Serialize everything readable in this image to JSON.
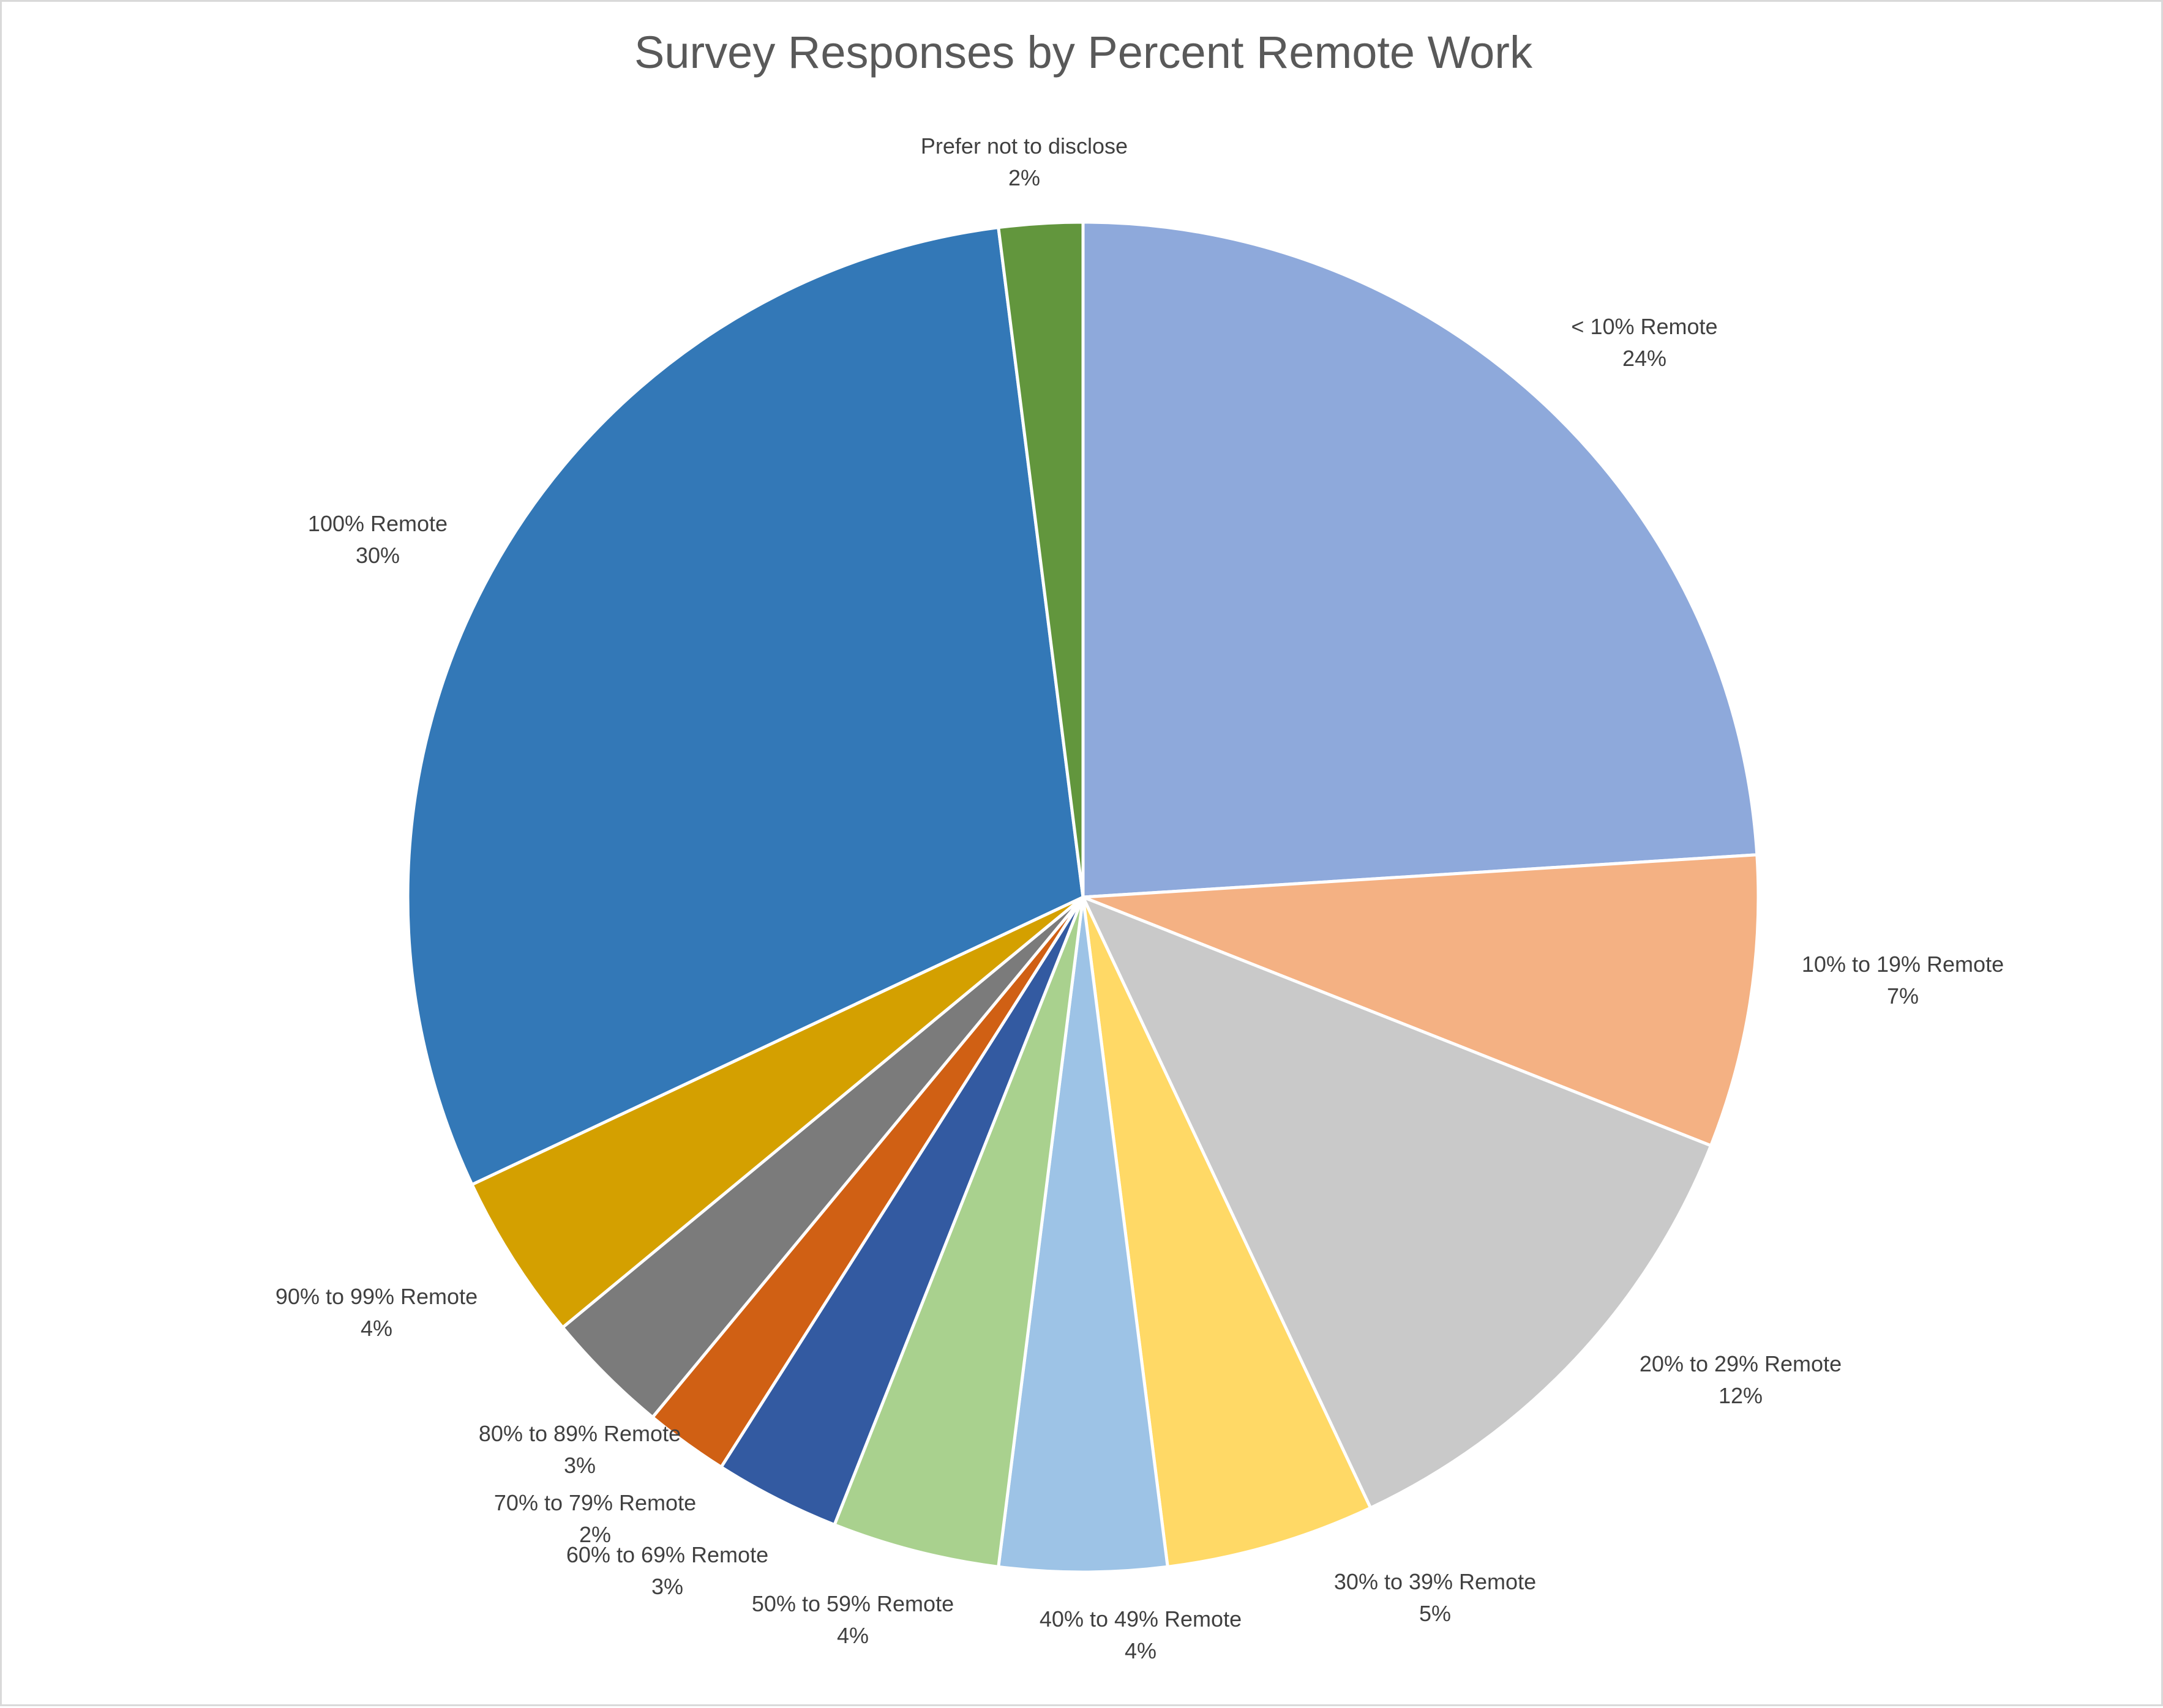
{
  "chart_data": {
    "type": "pie",
    "title": "Survey Responses by Percent Remote Work",
    "start_angle_deg": 0,
    "direction": "clockwise",
    "slices": [
      {
        "label": "< 10% Remote",
        "value": 24,
        "value_label": "24%",
        "color": "#8EA9DB"
      },
      {
        "label": "10% to 19% Remote",
        "value": 7,
        "value_label": "7%",
        "color": "#F4B183"
      },
      {
        "label": "20% to 29% Remote",
        "value": 12,
        "value_label": "12%",
        "color": "#C9C9C9"
      },
      {
        "label": "30% to 39% Remote",
        "value": 5,
        "value_label": "5%",
        "color": "#FFD966"
      },
      {
        "label": "40% to 49% Remote",
        "value": 4,
        "value_label": "4%",
        "color": "#9DC3E6"
      },
      {
        "label": "50% to 59% Remote",
        "value": 4,
        "value_label": "4%",
        "color": "#A9D18E"
      },
      {
        "label": "60% to 69% Remote",
        "value": 3,
        "value_label": "3%",
        "color": "#335AA1"
      },
      {
        "label": "70% to 79% Remote",
        "value": 2,
        "value_label": "2%",
        "color": "#D06014"
      },
      {
        "label": "80% to 89% Remote",
        "value": 3,
        "value_label": "3%",
        "color": "#7B7B7B"
      },
      {
        "label": "90% to 99% Remote",
        "value": 4,
        "value_label": "4%",
        "color": "#D4A000"
      },
      {
        "label": "100% Remote",
        "value": 30,
        "value_label": "30%",
        "color": "#3378B7"
      },
      {
        "label": "Prefer not to disclose",
        "value": 2,
        "value_label": "2%",
        "color": "#62963D"
      }
    ]
  }
}
